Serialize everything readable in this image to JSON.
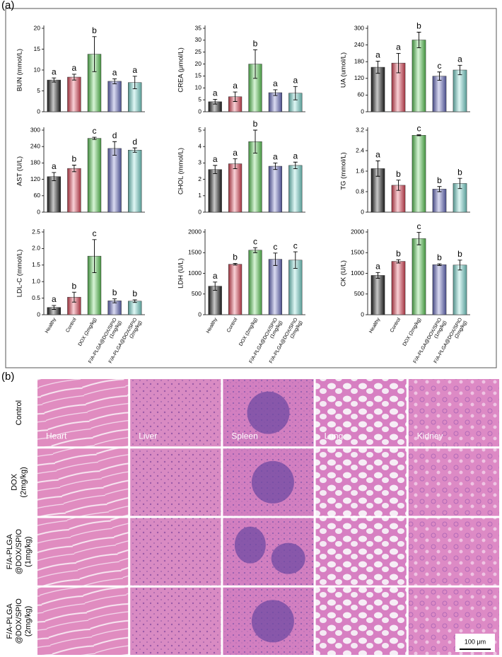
{
  "panel_a": {
    "label": "(a)"
  },
  "chart_data": [
    {
      "type": "bar",
      "ylabel": "BUN (mmol/L)",
      "categories": [
        null,
        null,
        null,
        null,
        null
      ],
      "values": [
        7.6,
        8.3,
        13.8,
        7.3,
        7.0
      ],
      "errors": [
        0.5,
        0.7,
        4.2,
        0.6,
        1.5
      ],
      "annotations": [
        "a",
        "a",
        "b",
        "a",
        "a"
      ],
      "colors": [
        "#222222",
        "#e8485a",
        "#5fd35a",
        "#6a6fc8",
        "#7fe0d8"
      ],
      "ylim": [
        0,
        20
      ],
      "yticks": [
        0,
        5,
        10,
        15,
        20
      ]
    },
    {
      "type": "bar",
      "ylabel": "CREA (μmol/L)",
      "categories": [
        null,
        null,
        null,
        null,
        null
      ],
      "values": [
        4.2,
        6.3,
        20,
        8,
        7.8
      ],
      "errors": [
        1,
        2,
        6,
        1.2,
        2.8
      ],
      "annotations": [
        "a",
        "a",
        "b",
        "a",
        "a"
      ],
      "colors": [
        "#222222",
        "#e8485a",
        "#5fd35a",
        "#6a6fc8",
        "#7fe0d8"
      ],
      "ylim": [
        0,
        35
      ],
      "yticks": [
        0,
        5,
        10,
        15,
        20,
        25,
        30,
        35
      ]
    },
    {
      "type": "bar",
      "ylabel": "UA (umol/L)",
      "categories": [
        null,
        null,
        null,
        null,
        null
      ],
      "values": [
        160,
        175,
        258,
        128,
        150
      ],
      "errors": [
        22,
        35,
        28,
        15,
        17
      ],
      "annotations": [
        "a",
        "a",
        "b",
        "c",
        "a"
      ],
      "colors": [
        "#222222",
        "#e8485a",
        "#5fd35a",
        "#6a6fc8",
        "#7fe0d8"
      ],
      "ylim": [
        0,
        300
      ],
      "yticks": [
        0,
        60,
        120,
        180,
        240,
        300
      ]
    },
    {
      "type": "bar",
      "ylabel": "AST (U/L)",
      "categories": [
        null,
        null,
        null,
        null,
        null
      ],
      "values": [
        130,
        160,
        270,
        233,
        227
      ],
      "errors": [
        15,
        12,
        4,
        25,
        8
      ],
      "annotations": [
        "a",
        "b",
        "c",
        "d",
        "d"
      ],
      "colors": [
        "#222222",
        "#e8485a",
        "#5fd35a",
        "#6a6fc8",
        "#7fe0d8"
      ],
      "ylim": [
        0,
        300
      ],
      "yticks": [
        0,
        60,
        120,
        180,
        240,
        300
      ]
    },
    {
      "type": "bar",
      "ylabel": "CHOL (mmol/L)",
      "categories": [
        null,
        null,
        null,
        null,
        null
      ],
      "values": [
        2.6,
        2.95,
        4.3,
        2.8,
        2.85
      ],
      "errors": [
        0.25,
        0.3,
        0.7,
        0.2,
        0.2
      ],
      "annotations": [
        "a",
        "a",
        "b",
        "a",
        "a"
      ],
      "colors": [
        "#222222",
        "#e8485a",
        "#5fd35a",
        "#6a6fc8",
        "#7fe0d8"
      ],
      "ylim": [
        0,
        5
      ],
      "yticks": [
        0,
        1,
        2,
        3,
        4,
        5
      ]
    },
    {
      "type": "bar",
      "ylabel": "TG (mmol/L)",
      "categories": [
        null,
        null,
        null,
        null,
        null
      ],
      "values": [
        1.7,
        1.05,
        3.0,
        0.9,
        1.12
      ],
      "errors": [
        0.3,
        0.2,
        0.02,
        0.1,
        0.2
      ],
      "annotations": [
        "a",
        "b",
        "c",
        "b",
        "b"
      ],
      "colors": [
        "#222222",
        "#e8485a",
        "#5fd35a",
        "#6a6fc8",
        "#7fe0d8"
      ],
      "ylim": [
        0,
        3.2
      ],
      "yticks": [
        0,
        0.8,
        1.6,
        2.4,
        3.2
      ]
    },
    {
      "type": "bar",
      "ylabel": "LDL-C (mmol/L)",
      "categories": [
        "Healthy",
        "Control",
        "DOX (2mg/kg)",
        "F/A-PLGA@DOX/SPIO (1mg/kg)",
        "F/A-PLGA@DOX/SPIO (2mg/kg)"
      ],
      "values": [
        0.22,
        0.53,
        1.77,
        0.42,
        0.41
      ],
      "errors": [
        0.06,
        0.15,
        0.5,
        0.06,
        0.04
      ],
      "annotations": [
        "a",
        "b",
        "c",
        "b",
        "b"
      ],
      "colors": [
        "#222222",
        "#e8485a",
        "#5fd35a",
        "#6a6fc8",
        "#7fe0d8"
      ],
      "ylim": [
        0,
        2.5
      ],
      "yticks": [
        0,
        0.5,
        {
          "value": 1,
          "label": "1.0"
        },
        1.5,
        {
          "value": 2,
          "label": "2.0"
        },
        2.5
      ]
    },
    {
      "type": "bar",
      "ylabel": "LDH (U/L)",
      "categories": [
        "Healthy",
        "Control",
        "DOX (2mg/kg)",
        "F/A-PLGA@DOX/SPIO (1mg/kg)",
        "F/A-PLGA@DOX/SPIO (2mg/kg)"
      ],
      "values": [
        690,
        1220,
        1560,
        1340,
        1320
      ],
      "errors": [
        100,
        20,
        60,
        150,
        200
      ],
      "annotations": [
        "a",
        "b",
        "c",
        "c",
        "c"
      ],
      "colors": [
        "#222222",
        "#e8485a",
        "#5fd35a",
        "#6a6fc8",
        "#7fe0d8"
      ],
      "ylim": [
        0,
        2000
      ],
      "yticks": [
        0,
        500,
        1000,
        1500,
        2000
      ]
    },
    {
      "type": "bar",
      "ylabel": "CK (U/L)",
      "categories": [
        "Healthy",
        "Control",
        "DOX (2mg/kg)",
        "F/A-PLGA@DOX/SPIO (1mg/kg)",
        "F/A-PLGA@DOX/SPIO (2mg/kg)"
      ],
      "values": [
        950,
        1290,
        1840,
        1210,
        1200
      ],
      "errors": [
        70,
        40,
        150,
        20,
        120
      ],
      "annotations": [
        "a",
        "b",
        "c",
        "b",
        "b"
      ],
      "colors": [
        "#222222",
        "#e8485a",
        "#5fd35a",
        "#6a6fc8",
        "#7fe0d8"
      ],
      "ylim": [
        0,
        2000
      ],
      "yticks": [
        0,
        500,
        1000,
        1500,
        2000
      ]
    }
  ],
  "histology": {
    "label": "(b)",
    "columns": [
      "Heart",
      "Liver",
      "Spleen",
      "Lung",
      "Kidney"
    ],
    "rows": [
      [
        "Control"
      ],
      [
        "DOX",
        "(2mg/kg)"
      ],
      [
        "F/A-PLGA",
        "@DOX/SPIO",
        "(1mg/kg)"
      ],
      [
        "F/A-PLGA",
        "@DOX/SPIO",
        "(2mg/kg)"
      ]
    ],
    "scale_bar": "100 μm"
  }
}
